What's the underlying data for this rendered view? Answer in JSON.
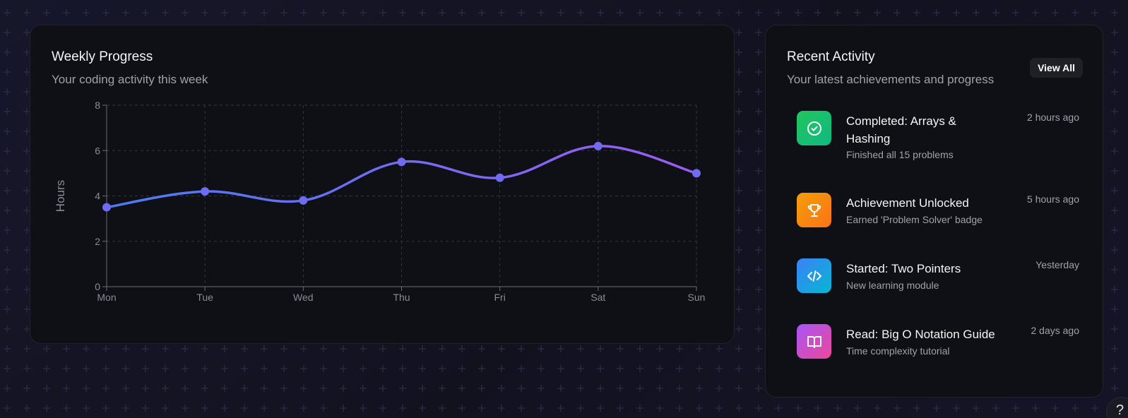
{
  "weekly": {
    "title": "Weekly Progress",
    "subtitle": "Your coding activity this week"
  },
  "chart_data": {
    "type": "line",
    "categories": [
      "Mon",
      "Tue",
      "Wed",
      "Thu",
      "Fri",
      "Sat",
      "Sun"
    ],
    "series": [
      {
        "values": [
          3.5,
          4.2,
          3.8,
          5.5,
          4.8,
          6.2,
          5.0
        ]
      }
    ],
    "title": "",
    "xlabel": "",
    "ylabel": "Hours",
    "ylim": [
      0,
      8
    ],
    "yticks": [
      0,
      2,
      4,
      6,
      8
    ],
    "grid": true,
    "line_gradient": [
      "#4b7bf2",
      "#9b5cf0"
    ],
    "marker_color": "#6f6bf3"
  },
  "activity": {
    "title": "Recent Activity",
    "subtitle": "Your latest achievements and progress",
    "view_all_label": "View All",
    "items": [
      {
        "title": "Completed: Arrays & Hashing",
        "description": "Finished all 15 problems",
        "time": "2 hours ago",
        "icon": "check-circle-icon",
        "color_from": "#22c55e",
        "color_to": "#10b981"
      },
      {
        "title": "Achievement Unlocked",
        "description": "Earned 'Problem Solver' badge",
        "time": "5 hours ago",
        "icon": "trophy-icon",
        "color_from": "#f59e0b",
        "color_to": "#f97316"
      },
      {
        "title": "Started: Two Pointers",
        "description": "New learning module",
        "time": "Yesterday",
        "icon": "code-icon",
        "color_from": "#3b82f6",
        "color_to": "#06b6d4"
      },
      {
        "title": "Read: Big O Notation Guide",
        "description": "Time complexity tutorial",
        "time": "2 days ago",
        "icon": "book-open-icon",
        "color_from": "#a855f7",
        "color_to": "#ec4899"
      }
    ]
  },
  "help": {
    "label": "?"
  }
}
